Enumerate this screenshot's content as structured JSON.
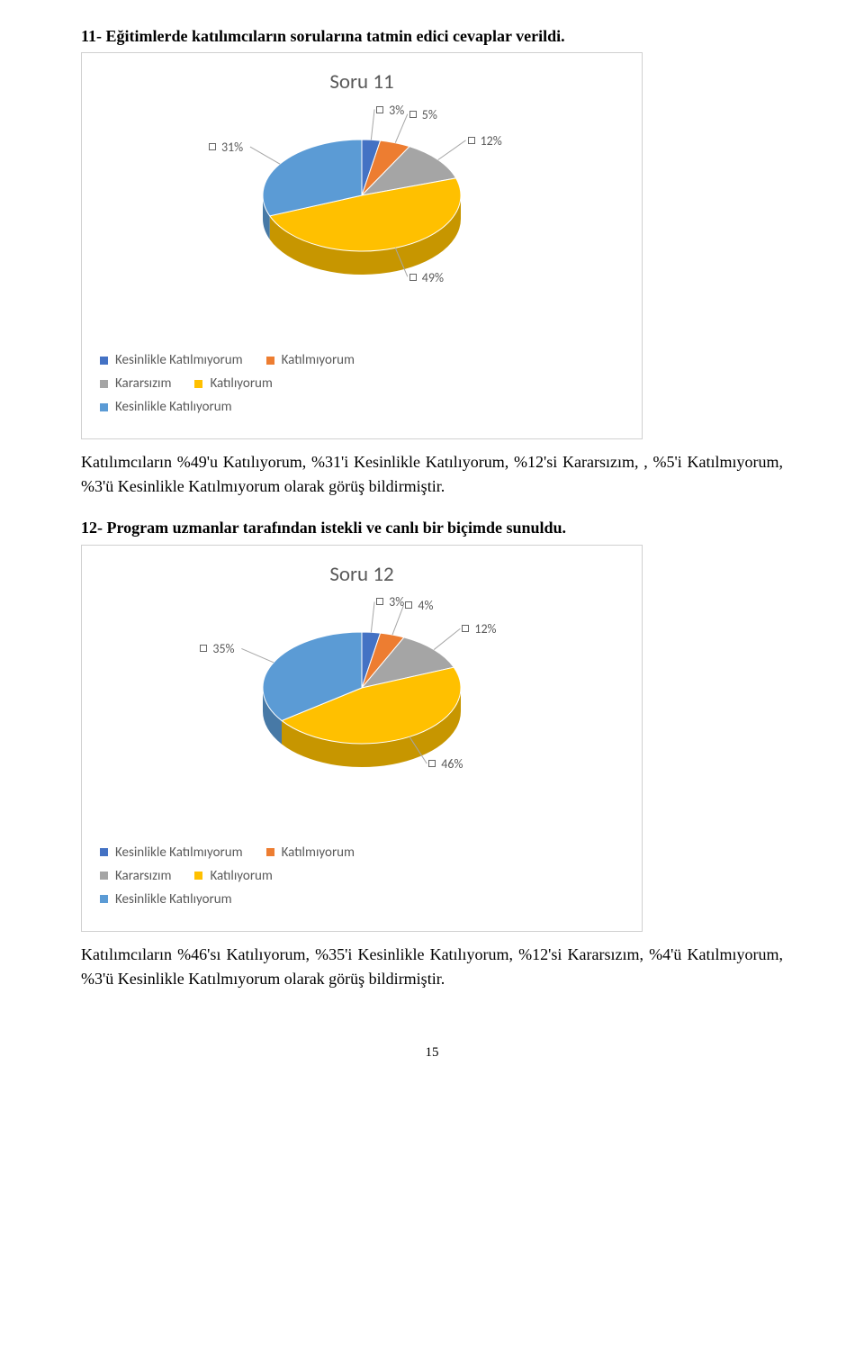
{
  "heading1": "11- Eğitimlerde katılımcıların sorularına tatmin edici cevaplar verildi.",
  "heading2": "12- Program uzmanlar tarafından istekli ve canlı bir biçimde sunuldu.",
  "paragraph1": "Katılımcıların %49'u Katılıyorum, %31'i Kesinlikle Katılıyorum, %12'si Kararsızım, , %5'i Katılmıyorum, %3'ü Kesinlikle Katılmıyorum olarak görüş bildirmiştir.",
  "paragraph2": "Katılımcıların %46'sı Katılıyorum, %35'i Kesinlikle Katılıyorum, %12'si Kararsızım, %4'ü Katılmıyorum, %3'ü Kesinlikle Katılmıyorum olarak görüş bildirmiştir.",
  "pagenum": "15",
  "chart1": {
    "title": "Soru 11",
    "type": "pie-3d",
    "slices": [
      {
        "label": "3%",
        "value": 3,
        "color": "#4472c4"
      },
      {
        "label": "5%",
        "value": 5,
        "color": "#ed7d31"
      },
      {
        "label": "12%",
        "value": 12,
        "color": "#a5a5a5"
      },
      {
        "label": "49%",
        "value": 49,
        "color": "#ffc000"
      },
      {
        "label": "31%",
        "value": 31,
        "color": "#5b9bd5"
      }
    ],
    "legend": [
      {
        "label": "Kesinlikle Katılmıyorum",
        "color": "#4472c4"
      },
      {
        "label": "Katılmıyorum",
        "color": "#ed7d31"
      },
      {
        "label": "Kararsızım",
        "color": "#a5a5a5"
      },
      {
        "label": "Katılıyorum",
        "color": "#ffc000"
      },
      {
        "label": "Kesinlikle Katılıyorum",
        "color": "#5b9bd5"
      }
    ],
    "colors": {
      "border": "#d0d0d0",
      "text": "#595959",
      "leader": "#a6a6a6",
      "side_shade": 0.78
    }
  },
  "chart2": {
    "title": "Soru 12",
    "type": "pie-3d",
    "slices": [
      {
        "label": "3%",
        "value": 3,
        "color": "#4472c4"
      },
      {
        "label": "4%",
        "value": 4,
        "color": "#ed7d31"
      },
      {
        "label": "12%",
        "value": 12,
        "color": "#a5a5a5"
      },
      {
        "label": "46%",
        "value": 46,
        "color": "#ffc000"
      },
      {
        "label": "35%",
        "value": 35,
        "color": "#5b9bd5"
      }
    ],
    "legend": [
      {
        "label": "Kesinlikle Katılmıyorum",
        "color": "#4472c4"
      },
      {
        "label": "Katılmıyorum",
        "color": "#ed7d31"
      },
      {
        "label": "Kararsızım",
        "color": "#a5a5a5"
      },
      {
        "label": "Katılıyorum",
        "color": "#ffc000"
      },
      {
        "label": "Kesinlikle Katılıyorum",
        "color": "#5b9bd5"
      }
    ],
    "colors": {
      "border": "#d0d0d0",
      "text": "#595959",
      "leader": "#a6a6a6",
      "side_shade": 0.78
    }
  }
}
